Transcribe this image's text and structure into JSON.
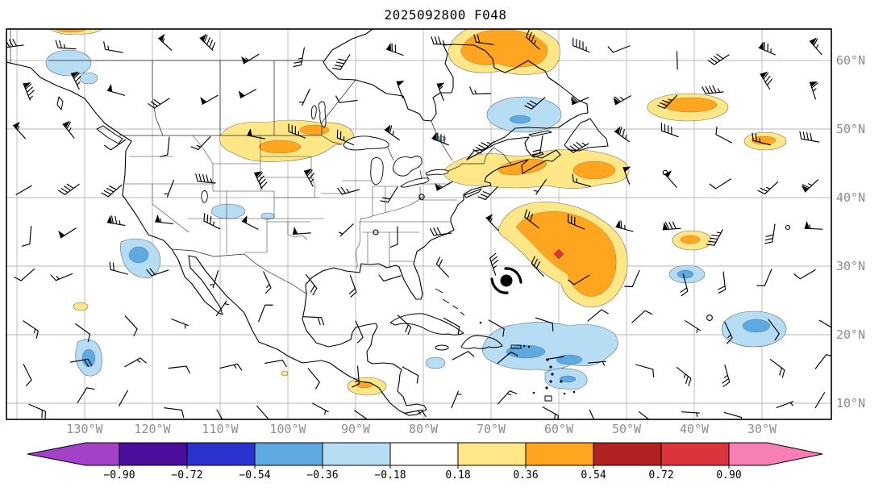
{
  "title": "2025092800 F048",
  "axes": {
    "lon_labels": [
      "130°W",
      "120°W",
      "110°W",
      "100°W",
      "90°W",
      "80°W",
      "70°W",
      "60°W",
      "50°W",
      "40°W",
      "30°W"
    ],
    "lat_labels": [
      "60°N",
      "50°N",
      "40°N",
      "30°N",
      "20°N",
      "10°N"
    ],
    "label_color": "#8c8c8c",
    "grid_color": "#b5b5b5"
  },
  "colorbar": {
    "tick_labels": [
      "−0.90",
      "−0.72",
      "−0.54",
      "−0.36",
      "−0.18",
      "0.18",
      "0.36",
      "0.54",
      "0.72",
      "0.90"
    ],
    "colors": [
      "#A341C9",
      "#4A0D9C",
      "#2B32CE",
      "#5FA9E2",
      "#B6DDF4",
      "#FFFFFF",
      "#FFE788",
      "#FFA51F",
      "#B22222",
      "#DC343B",
      "#F87FB4"
    ]
  },
  "icons": {
    "hurricane": "hurricane-symbol",
    "station_marker": "open-circle-marker"
  }
}
